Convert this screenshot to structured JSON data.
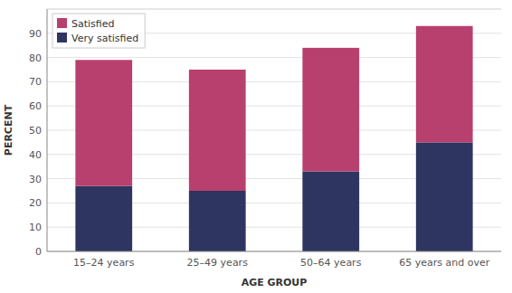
{
  "chart_data": {
    "type": "bar",
    "stacked": true,
    "categories": [
      "15–24 years",
      "25–49 years",
      "50–64 years",
      "65 years and over"
    ],
    "series": [
      {
        "name": "Very satisfied",
        "color": "#2e3560",
        "values": [
          27,
          25,
          33,
          45
        ]
      },
      {
        "name": "Satisfied",
        "color": "#b8406e",
        "values": [
          52,
          50,
          51,
          48
        ]
      }
    ],
    "xlabel": "AGE GROUP",
    "ylabel": "PERCENT",
    "ylim": [
      0,
      100
    ],
    "yticks": [
      0,
      10,
      20,
      30,
      40,
      50,
      60,
      70,
      80,
      90
    ],
    "grid": true,
    "legend": "upper left"
  }
}
